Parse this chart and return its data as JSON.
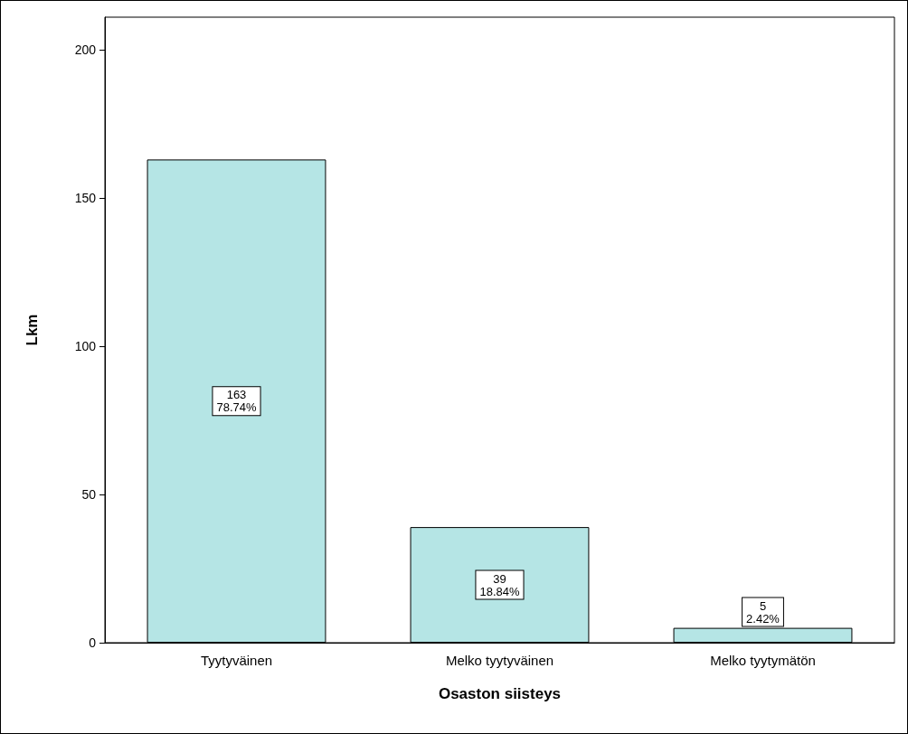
{
  "chart_data": {
    "type": "bar",
    "xlabel": "Osaston siisteys",
    "ylabel": "Lkm",
    "categories": [
      "Tyytyväinen",
      "Melko tyytyväinen",
      "Melko tyytymätön"
    ],
    "values": [
      163,
      39,
      5
    ],
    "value_labels": [
      "163\n78.74%",
      "39\n18.84%",
      "5\n2.42%"
    ],
    "color": "#b5e5e5",
    "ylim": [
      0,
      211
    ],
    "yticks": [
      0,
      50,
      100,
      150,
      200
    ],
    "grid": false
  }
}
